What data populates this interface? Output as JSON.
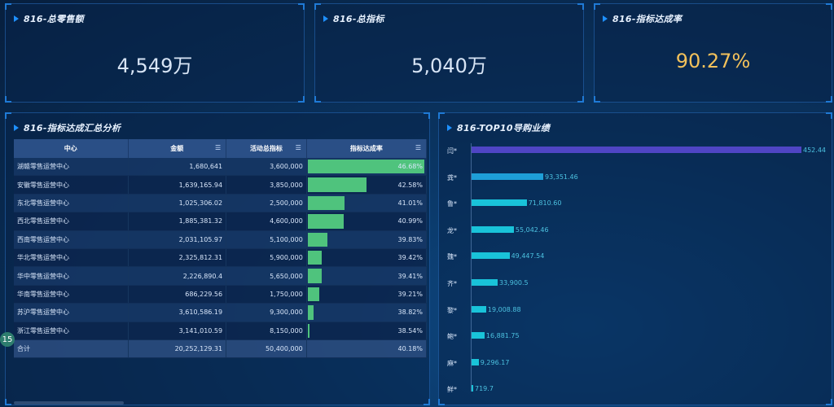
{
  "kpis": [
    {
      "title": "816-总零售额",
      "value": "4,549万"
    },
    {
      "title": "816-总指标",
      "value": "5,040万"
    },
    {
      "title": "816-指标达成率",
      "value": "90.27%"
    }
  ],
  "summary": {
    "title": "816-指标达成汇总分析",
    "headers": [
      "中心",
      "金额",
      "活动总指标",
      "指标达成率"
    ],
    "rows": [
      {
        "center": "湖赣零售运营中心",
        "amount": "1,680,641",
        "target": "3,600,000",
        "rate": "46.68%",
        "rate_value": 46.68
      },
      {
        "center": "安徽零售运营中心",
        "amount": "1,639,165.94",
        "target": "3,850,000",
        "rate": "42.58%",
        "rate_value": 42.58
      },
      {
        "center": "东北零售运营中心",
        "amount": "1,025,306.02",
        "target": "2,500,000",
        "rate": "41.01%",
        "rate_value": 41.01
      },
      {
        "center": "西北零售运营中心",
        "amount": "1,885,381.32",
        "target": "4,600,000",
        "rate": "40.99%",
        "rate_value": 40.99
      },
      {
        "center": "西南零售运营中心",
        "amount": "2,031,105.97",
        "target": "5,100,000",
        "rate": "39.83%",
        "rate_value": 39.83
      },
      {
        "center": "华北零售运营中心",
        "amount": "2,325,812.31",
        "target": "5,900,000",
        "rate": "39.42%",
        "rate_value": 39.42
      },
      {
        "center": "华中零售运营中心",
        "amount": "2,226,890.4",
        "target": "5,650,000",
        "rate": "39.41%",
        "rate_value": 39.41
      },
      {
        "center": "华南零售运营中心",
        "amount": "686,229.56",
        "target": "1,750,000",
        "rate": "39.21%",
        "rate_value": 39.21
      },
      {
        "center": "苏沪零售运营中心",
        "amount": "3,610,586.19",
        "target": "9,300,000",
        "rate": "38.82%",
        "rate_value": 38.82
      },
      {
        "center": "浙江零售运营中心",
        "amount": "3,141,010.59",
        "target": "8,150,000",
        "rate": "38.54%",
        "rate_value": 38.54
      }
    ],
    "total": {
      "center": "合计",
      "amount": "20,252,129.31",
      "target": "50,400,000",
      "rate": "40.18%"
    },
    "page_badge": "15"
  },
  "top10": {
    "title": "816-TOP10导购业绩",
    "items": [
      {
        "name": "闫*",
        "label": "452.44",
        "value": 452.44,
        "color": "#4f45c4"
      },
      {
        "name": "龚*",
        "label": "93,351.46",
        "value": 93351.46,
        "color": "#1e9fd8"
      },
      {
        "name": "鲁*",
        "label": "71,810.60",
        "value": 71810.6,
        "color": "#19c3d9"
      },
      {
        "name": "龙*",
        "label": "55,042.46",
        "value": 55042.46,
        "color": "#19c3d9"
      },
      {
        "name": "魏*",
        "label": "49,447.54",
        "value": 49447.54,
        "color": "#19c3d9"
      },
      {
        "name": "齐*",
        "label": "33,900.5",
        "value": 33900.5,
        "color": "#19c3d9"
      },
      {
        "name": "黎*",
        "label": "19,008.88",
        "value": 19008.88,
        "color": "#19c3d9"
      },
      {
        "name": "鲍*",
        "label": "16,881.75",
        "value": 16881.75,
        "color": "#19c3d9"
      },
      {
        "name": "麻*",
        "label": "9,296.17",
        "value": 9296.17,
        "color": "#19c3d9"
      },
      {
        "name": "鲜*",
        "label": "719.7",
        "value": 719.7,
        "color": "#19c3d9"
      }
    ]
  },
  "colors": {
    "rate_bar": "#4fc37d",
    "accent": "#1e90ff",
    "kpi_gold": "#f2c15b"
  }
}
